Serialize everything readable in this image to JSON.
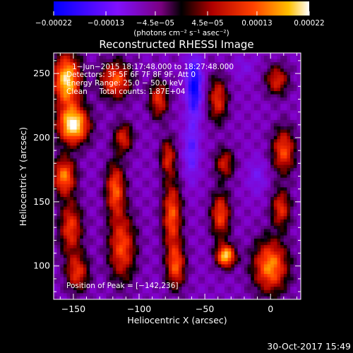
{
  "chart_data": {
    "type": "heatmap",
    "title": "Reconstructed RHESSI Image",
    "xlabel": "Heliocentric X (arcsec)",
    "ylabel": "Heliocentric Y (arcsec)",
    "xlim": [
      -165,
      23
    ],
    "ylim": [
      74,
      266
    ],
    "x_ticks": [
      -150,
      -100,
      -50,
      0
    ],
    "x_tick_labels": [
      "−150",
      "−100",
      "−50",
      "0"
    ],
    "y_ticks": [
      100,
      150,
      200,
      250
    ],
    "y_tick_labels": [
      "100",
      "150",
      "200",
      "250"
    ],
    "colorbar": {
      "min": -0.00022,
      "max": 0.00022,
      "ticks": [
        -0.00022,
        -0.00013,
        -4.5e-05,
        4.5e-05,
        0.00013,
        0.00022
      ],
      "tick_labels": [
        "−0.00022",
        "−0.00013",
        "−4.5e−05",
        "4.5e−05",
        "0.00013",
        "0.00022"
      ],
      "unit_label": "(photons cm⁻² s⁻¹ asec⁻²)"
    },
    "annotations": [
      "1−Jun−2015 18:17:48.000 to 18:27:48.000",
      "Detectors: 3F 5F 6F 7F 8F 9F, Att 0",
      "Energy Range: 25.0 − 50.0 keV",
      "Clean     Total counts: 1.87E+04"
    ],
    "peak_label": "Position of Peak = [−142,236]",
    "peak_position": [
      -142,
      236
    ],
    "sources": [
      {
        "x": -155,
        "y": 245,
        "value": 0.0002,
        "sx": 7,
        "sy": 14
      },
      {
        "x": -150,
        "y": 210,
        "value": 0.00022,
        "sx": 8,
        "sy": 10
      },
      {
        "x": -157,
        "y": 170,
        "value": 0.00014,
        "sx": 6,
        "sy": 10
      },
      {
        "x": -152,
        "y": 130,
        "value": 0.0001,
        "sx": 6,
        "sy": 14
      },
      {
        "x": -147,
        "y": 95,
        "value": 9e-05,
        "sx": 6,
        "sy": 10
      },
      {
        "x": -118,
        "y": 245,
        "value": 0.00012,
        "sx": 8,
        "sy": 10
      },
      {
        "x": -112,
        "y": 200,
        "value": 8e-05,
        "sx": 5,
        "sy": 8
      },
      {
        "x": -118,
        "y": 160,
        "value": 0.00012,
        "sx": 5,
        "sy": 14
      },
      {
        "x": -113,
        "y": 115,
        "value": 0.00011,
        "sx": 7,
        "sy": 18
      },
      {
        "x": -85,
        "y": 230,
        "value": 9e-05,
        "sx": 5,
        "sy": 10
      },
      {
        "x": -78,
        "y": 185,
        "value": 8e-05,
        "sx": 4,
        "sy": 10
      },
      {
        "x": -75,
        "y": 140,
        "value": 0.00012,
        "sx": 5,
        "sy": 18
      },
      {
        "x": -72,
        "y": 100,
        "value": 0.00011,
        "sx": 5,
        "sy": 12
      },
      {
        "x": -40,
        "y": 230,
        "value": 9e-05,
        "sx": 5,
        "sy": 12
      },
      {
        "x": -35,
        "y": 180,
        "value": 7e-05,
        "sx": 5,
        "sy": 8
      },
      {
        "x": -38,
        "y": 140,
        "value": 0.00011,
        "sx": 5,
        "sy": 12
      },
      {
        "x": -34,
        "y": 108,
        "value": 0.00019,
        "sx": 5,
        "sy": 6
      },
      {
        "x": 5,
        "y": 245,
        "value": 8e-05,
        "sx": 6,
        "sy": 8
      },
      {
        "x": 10,
        "y": 190,
        "value": 0.00011,
        "sx": 6,
        "sy": 12
      },
      {
        "x": 8,
        "y": 145,
        "value": 9e-05,
        "sx": 5,
        "sy": 10
      },
      {
        "x": 0,
        "y": 100,
        "value": 0.00015,
        "sx": 9,
        "sy": 14
      },
      {
        "x": -58,
        "y": 240,
        "value": -0.00022,
        "sx": 4,
        "sy": 16
      },
      {
        "x": -60,
        "y": 190,
        "value": -0.00014,
        "sx": 4,
        "sy": 16
      },
      {
        "x": -10,
        "y": 170,
        "value": -0.0001,
        "sx": 5,
        "sy": 10
      },
      {
        "x": -20,
        "y": 255,
        "value": -8e-05,
        "sx": 6,
        "sy": 6
      }
    ]
  },
  "footer": {
    "timestamp": "30-Oct-2017 15:49"
  },
  "colors": {
    "background": "#000000",
    "foreground": "#ffffff",
    "colormap": [
      "#0000ff",
      "#5520ff",
      "#7d10ff",
      "#9a00a0",
      "#000000",
      "#c00000",
      "#ff4500",
      "#ffb000",
      "#ffffff"
    ]
  }
}
